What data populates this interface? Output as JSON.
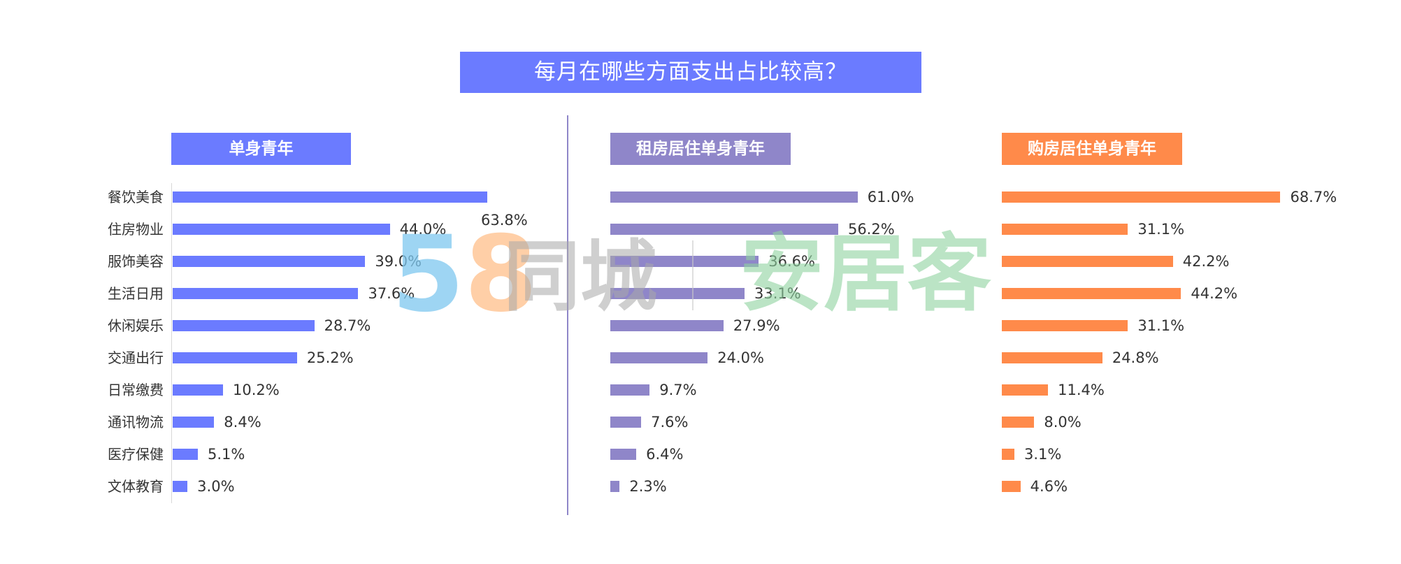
{
  "title": "每月在哪些方面支出占比较高？",
  "categories": [
    "餐饮美食",
    "住房物业",
    "服饰美容",
    "生活日用",
    "休闲娱乐",
    "交通出行",
    "日常缴费",
    "通讯物流",
    "医疗保健",
    "文体教育"
  ],
  "panels": [
    {
      "label": "单身青年",
      "color": "#6b7bff"
    },
    {
      "label": "租房居住单身青年",
      "color": "#8f86c9"
    },
    {
      "label": "购房居住单身青年",
      "color": "#ff8a4a"
    }
  ],
  "watermark": {
    "brand1_num": "58",
    "brand1_text": "同城",
    "brand2_text": "安居客"
  },
  "chart_data": [
    {
      "type": "bar",
      "title": "单身青年",
      "categories": [
        "餐饮美食",
        "住房物业",
        "服饰美容",
        "生活日用",
        "休闲娱乐",
        "交通出行",
        "日常缴费",
        "通讯物流",
        "医疗保健",
        "文体教育"
      ],
      "values": [
        63.8,
        44.0,
        39.0,
        37.6,
        28.7,
        25.2,
        10.2,
        8.4,
        5.1,
        3.0
      ],
      "labels": [
        "63.8%",
        "44.0%",
        "39.0%",
        "37.6%",
        "28.7%",
        "25.2%",
        "10.2%",
        "8.4%",
        "5.1%",
        "3.0%"
      ],
      "unit": "%",
      "orientation": "horizontal"
    },
    {
      "type": "bar",
      "title": "租房居住单身青年",
      "categories": [
        "餐饮美食",
        "住房物业",
        "服饰美容",
        "生活日用",
        "休闲娱乐",
        "交通出行",
        "日常缴费",
        "通讯物流",
        "医疗保健",
        "文体教育"
      ],
      "values": [
        61.0,
        56.2,
        36.6,
        33.1,
        27.9,
        24.0,
        9.7,
        7.6,
        6.4,
        2.3
      ],
      "labels": [
        "61.0%",
        "56.2%",
        "36.6%",
        "33.1%",
        "27.9%",
        "24.0%",
        "9.7%",
        "7.6%",
        "6.4%",
        "2.3%"
      ],
      "unit": "%",
      "orientation": "horizontal"
    },
    {
      "type": "bar",
      "title": "购房居住单身青年",
      "categories": [
        "餐饮美食",
        "住房物业",
        "服饰美容",
        "生活日用",
        "休闲娱乐",
        "交通出行",
        "日常缴费",
        "通讯物流",
        "医疗保健",
        "文体教育"
      ],
      "values": [
        68.7,
        31.1,
        42.2,
        44.2,
        31.1,
        24.8,
        11.4,
        8.0,
        3.1,
        4.6
      ],
      "labels": [
        "68.7%",
        "31.1%",
        "42.2%",
        "44.2%",
        "31.1%",
        "24.8%",
        "11.4%",
        "8.0%",
        "3.1%",
        "4.6%"
      ],
      "unit": "%",
      "orientation": "horizontal"
    }
  ]
}
